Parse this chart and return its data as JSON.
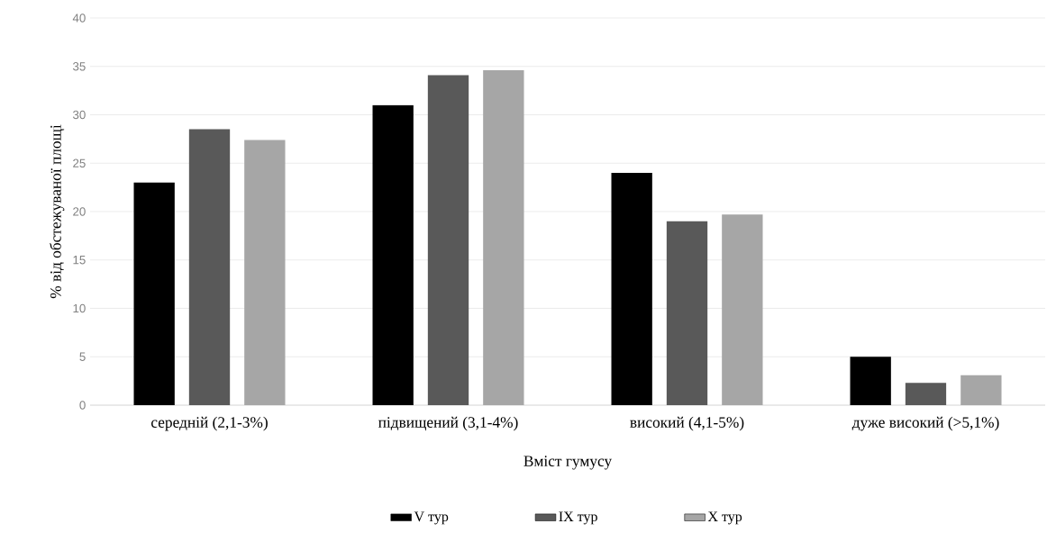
{
  "chart_data": {
    "type": "bar",
    "xlabel": "Вміст гумусу",
    "ylabel": "% від обстежуваної площі",
    "categories": [
      "середній (2,1-3%)",
      "підвищений (3,1-4%)",
      "високий (4,1-5%)",
      "дуже високий (>5,1%)"
    ],
    "series": [
      {
        "name": "V тур",
        "color": "#000000",
        "values": [
          23,
          31,
          24,
          5
        ]
      },
      {
        "name": "IX тур",
        "color": "#595959",
        "values": [
          28.5,
          34.1,
          19,
          2.3
        ]
      },
      {
        "name": "X тур",
        "color": "#a6a6a6",
        "values": [
          27.4,
          34.6,
          19.7,
          3.1
        ]
      }
    ],
    "ylim": [
      0,
      40
    ],
    "yticks": [
      0,
      5,
      10,
      15,
      20,
      25,
      30,
      35,
      40
    ],
    "grid": "y",
    "legend": "bottom"
  }
}
